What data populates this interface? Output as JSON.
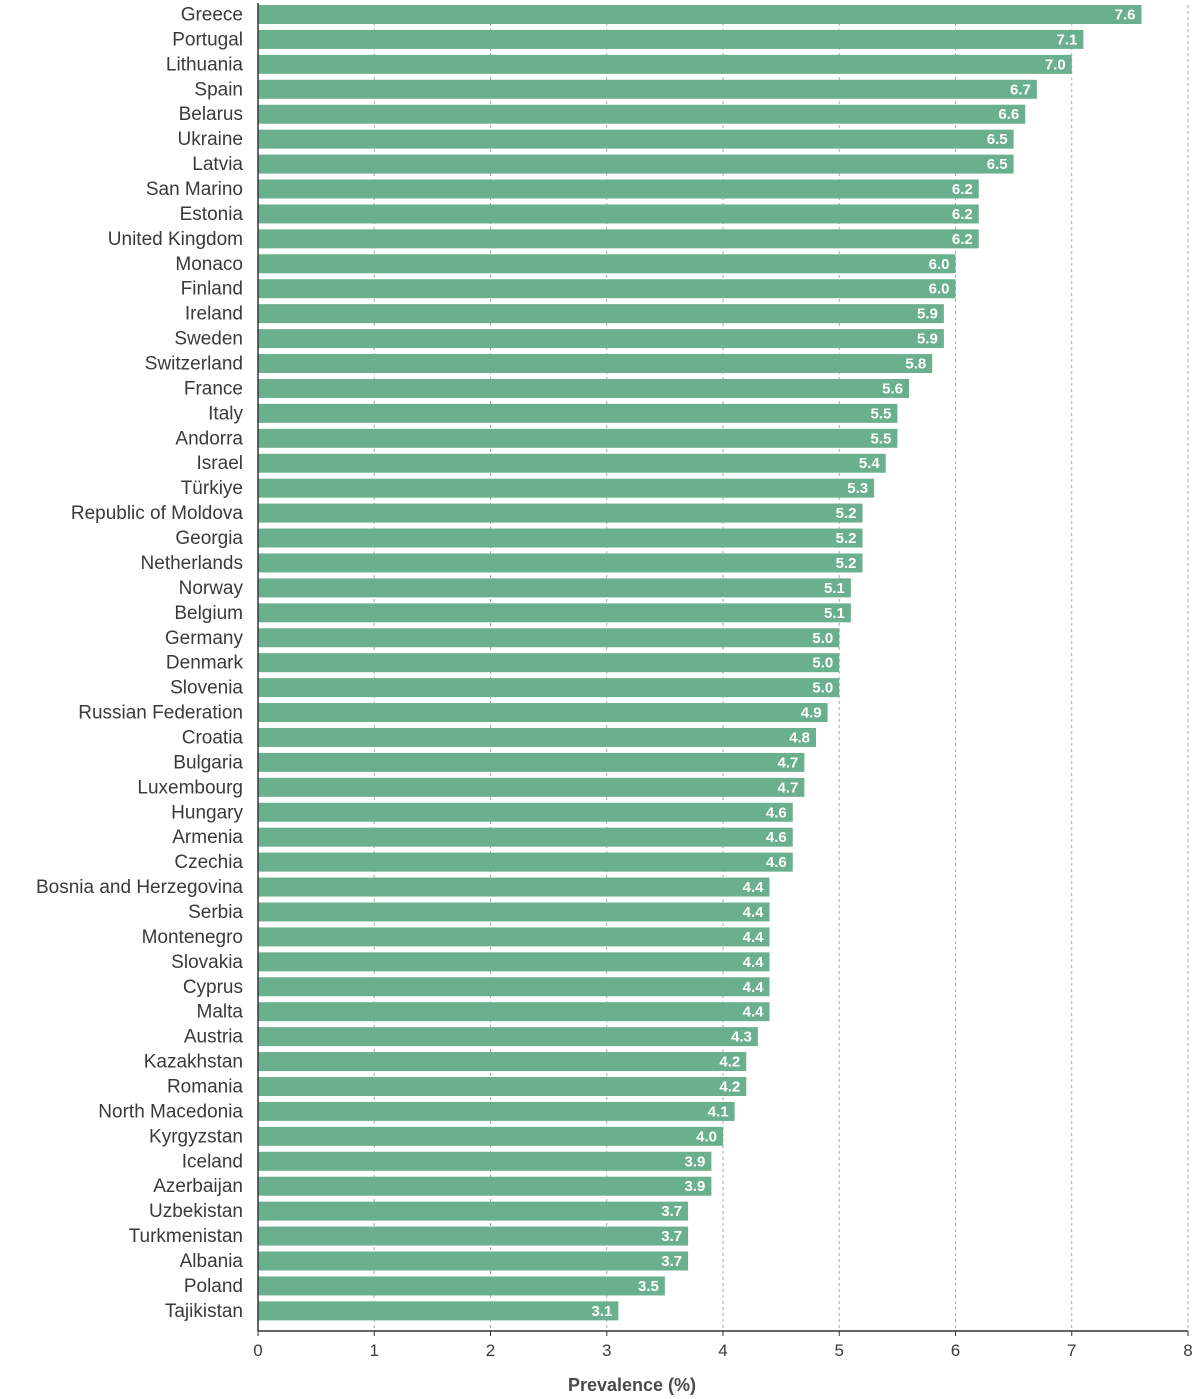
{
  "chart_data": {
    "type": "bar",
    "orientation": "horizontal",
    "categories": [
      "Greece",
      "Portugal",
      "Lithuania",
      "Spain",
      "Belarus",
      "Ukraine",
      "Latvia",
      "San Marino",
      "Estonia",
      "United Kingdom",
      "Monaco",
      "Finland",
      "Ireland",
      "Sweden",
      "Switzerland",
      "France",
      "Italy",
      "Andorra",
      "Israel",
      "Türkiye",
      "Republic of Moldova",
      "Georgia",
      "Netherlands",
      "Norway",
      "Belgium",
      "Germany",
      "Denmark",
      "Slovenia",
      "Russian Federation",
      "Croatia",
      "Bulgaria",
      "Luxembourg",
      "Hungary",
      "Armenia",
      "Czechia",
      "Bosnia and Herzegovina",
      "Serbia",
      "Montenegro",
      "Slovakia",
      "Cyprus",
      "Malta",
      "Austria",
      "Kazakhstan",
      "Romania",
      "North Macedonia",
      "Kyrgyzstan",
      "Iceland",
      "Azerbaijan",
      "Uzbekistan",
      "Turkmenistan",
      "Albania",
      "Poland",
      "Tajikistan"
    ],
    "values": [
      7.6,
      7.1,
      7.0,
      6.7,
      6.6,
      6.5,
      6.5,
      6.2,
      6.2,
      6.2,
      6.0,
      6.0,
      5.9,
      5.9,
      5.8,
      5.6,
      5.5,
      5.5,
      5.4,
      5.3,
      5.2,
      5.2,
      5.2,
      5.1,
      5.1,
      5.0,
      5.0,
      5.0,
      4.9,
      4.8,
      4.7,
      4.7,
      4.6,
      4.6,
      4.6,
      4.4,
      4.4,
      4.4,
      4.4,
      4.4,
      4.4,
      4.3,
      4.2,
      4.2,
      4.1,
      4.0,
      3.9,
      3.9,
      3.7,
      3.7,
      3.7,
      3.5,
      3.1
    ],
    "value_labels": [
      "7.6",
      "7.1",
      "7.0",
      "6.7",
      "6.6",
      "6.5",
      "6.5",
      "6.2",
      "6.2",
      "6.2",
      "6.0",
      "6.0",
      "5.9",
      "5.9",
      "5.8",
      "5.6",
      "5.5",
      "5.5",
      "5.4",
      "5.3",
      "5.2",
      "5.2",
      "5.2",
      "5.1",
      "5.1",
      "5.0",
      "5.0",
      "5.0",
      "4.9",
      "4.8",
      "4.7",
      "4.7",
      "4.6",
      "4.6",
      "4.6",
      "4.4",
      "4.4",
      "4.4",
      "4.4",
      "4.4",
      "4.4",
      "4.3",
      "4.2",
      "4.2",
      "4.1",
      "4.0",
      "3.9",
      "3.9",
      "3.7",
      "3.7",
      "3.7",
      "3.5",
      "3.1"
    ],
    "xlabel": "Prevalence (%)",
    "xlim": [
      0,
      8
    ],
    "xticks": [
      "0",
      "1",
      "2",
      "3",
      "4",
      "5",
      "6",
      "7",
      "8"
    ],
    "grid": "vertical dashed",
    "bar_color": "#6ab08e"
  }
}
